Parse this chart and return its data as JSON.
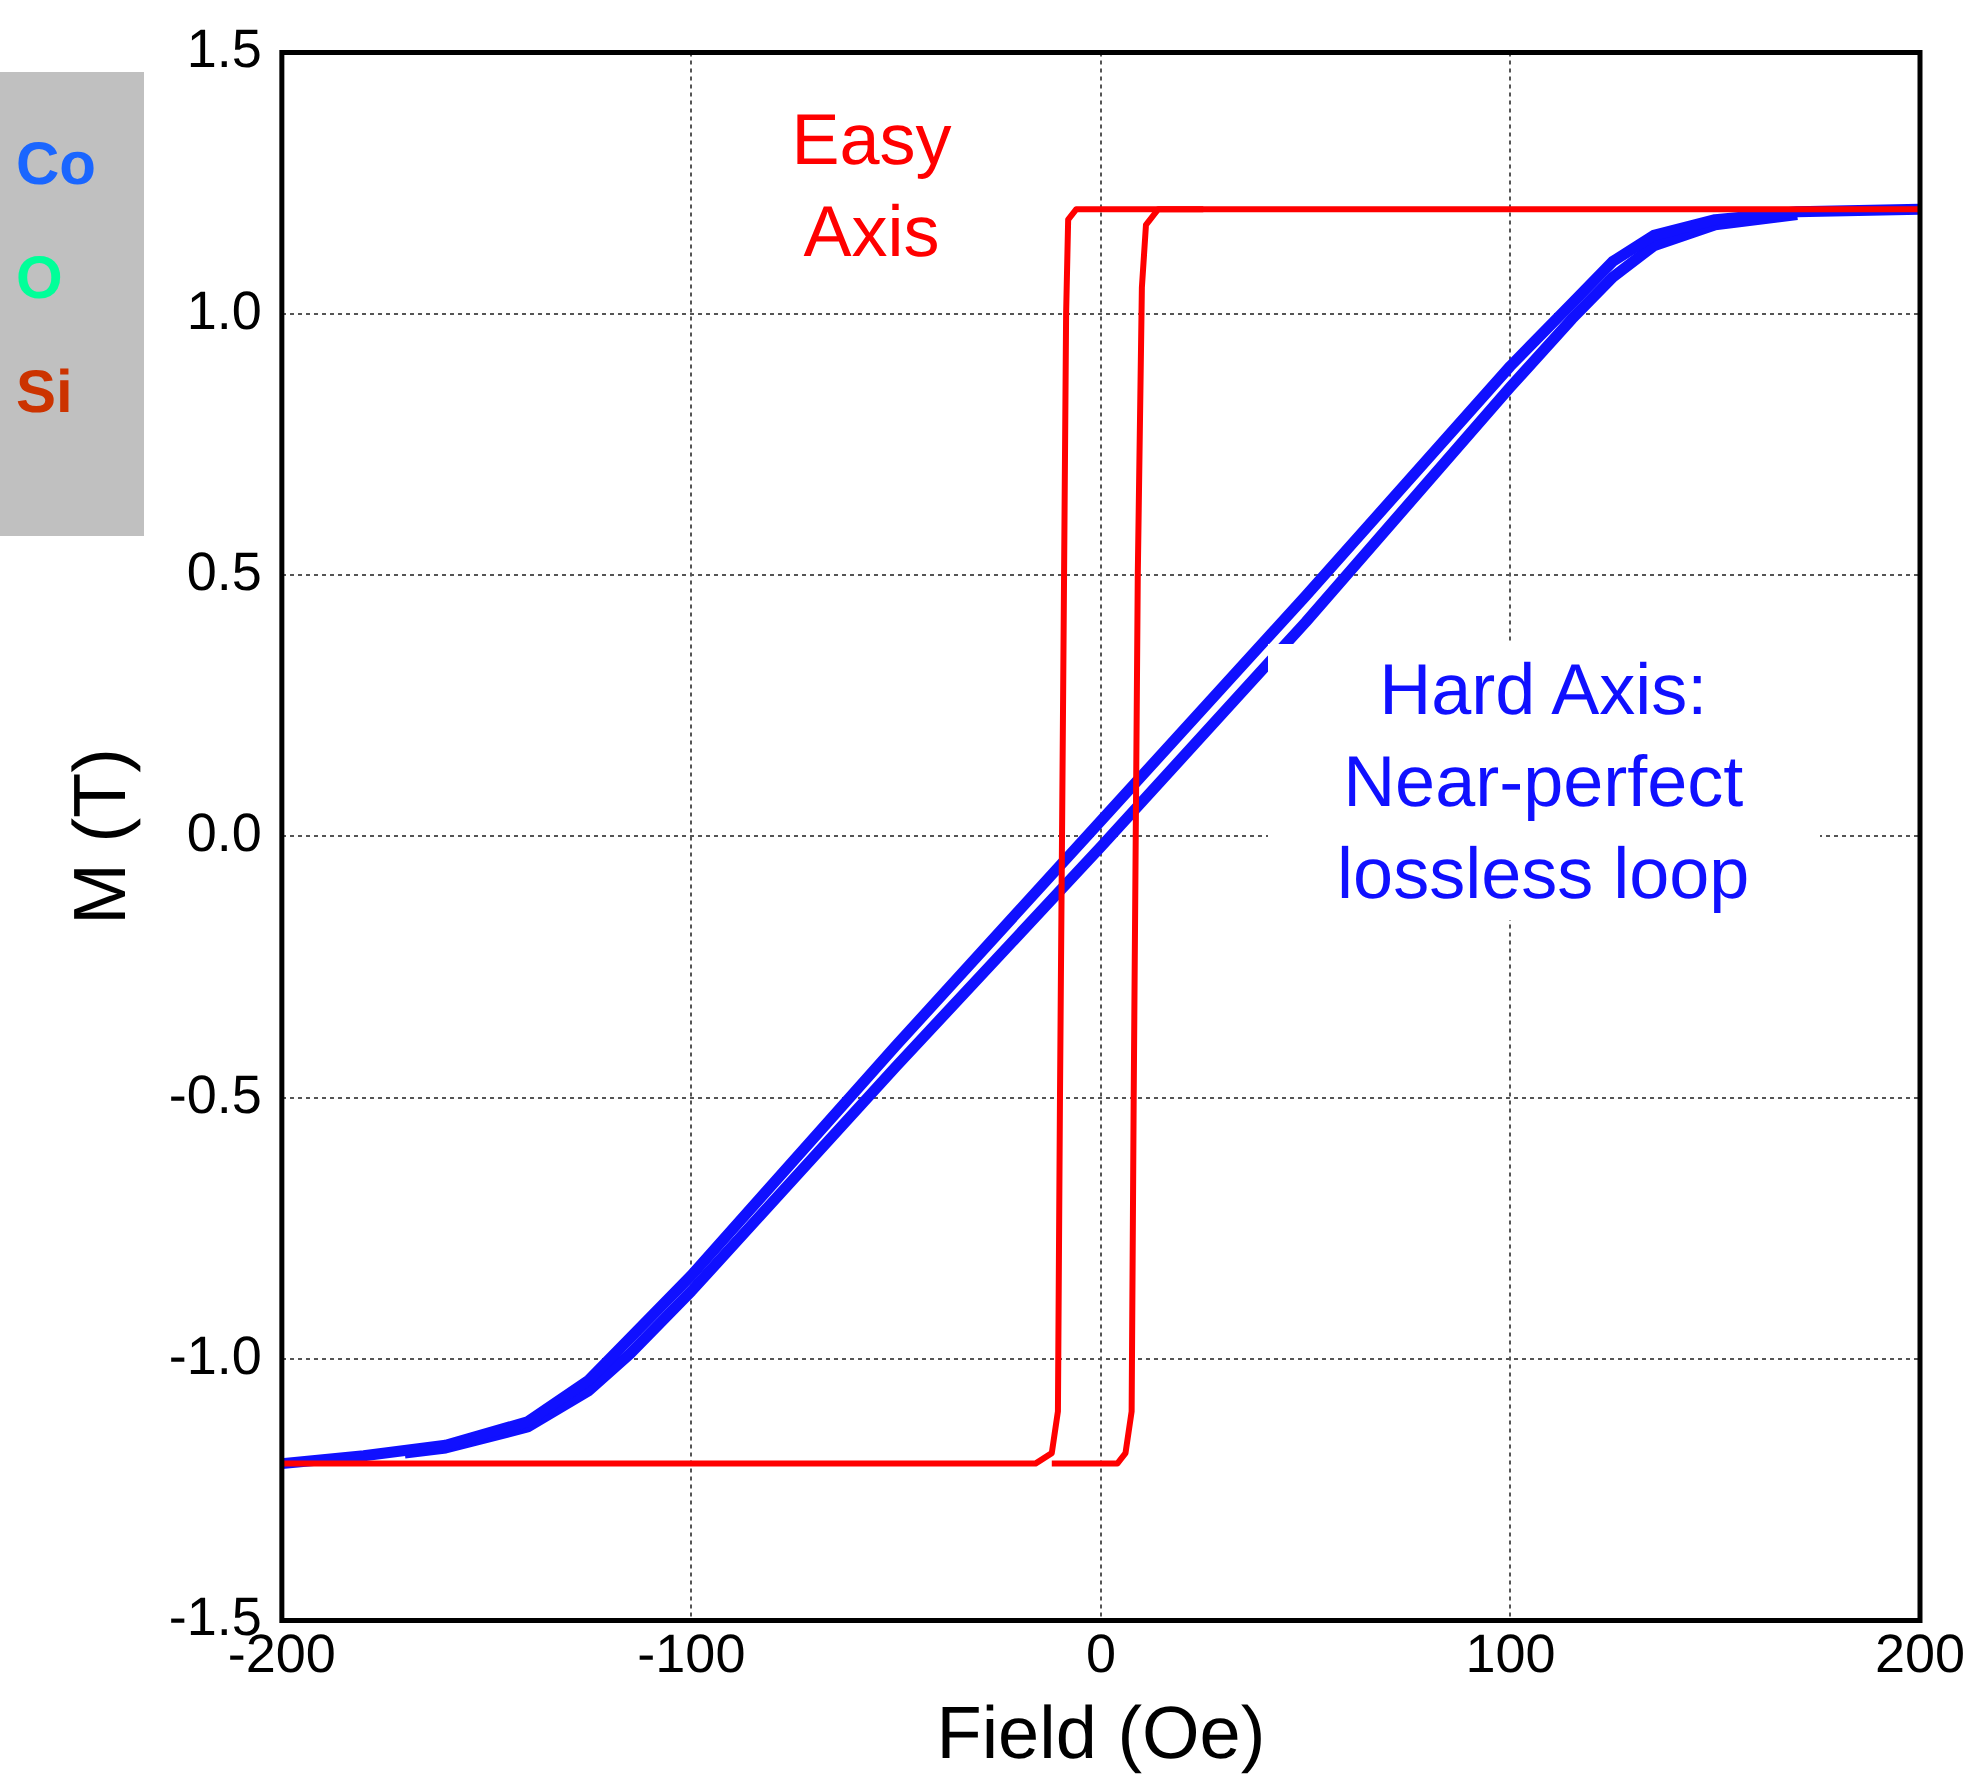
{
  "chart_data": {
    "type": "line",
    "xlabel": "Field (Oe)",
    "ylabel": "M (T)",
    "xlim": [
      -200,
      200
    ],
    "xticks": [
      -200,
      -100,
      0,
      100,
      200
    ],
    "ylim": [
      -1.5,
      1.5
    ],
    "yticks": [
      {
        "value": -1.5,
        "label": "-1.5"
      },
      {
        "value": -1,
        "label": "-1.0"
      },
      {
        "value": -0.5,
        "label": "-0.5"
      },
      {
        "value": 0,
        "label": "0.0"
      },
      {
        "value": 0.5,
        "label": "0.5"
      },
      {
        "value": 1,
        "label": "1.0"
      },
      {
        "value": 1.5,
        "label": "1.5"
      }
    ],
    "grid": true,
    "legend": false,
    "marker": "none",
    "line_style": "solid",
    "annotations": [
      "Co",
      "O",
      "Si"
    ],
    "series": [
      {
        "name": "Easy Axis",
        "color": "#ff0000",
        "x": [
          -200,
          -16,
          -12,
          -10.5,
          -10,
          -9,
          -8.5,
          -8,
          -6,
          200
        ],
        "values": [
          -1.2,
          -1.2,
          -1.18,
          -1.1,
          -0.5,
          0.5,
          1.0,
          1.18,
          1.2,
          1.2
        ]
      },
      {
        "color": "#ff0000",
        "x": [
          -12,
          4,
          6,
          7.5,
          8,
          9,
          10,
          11,
          14,
          25
        ],
        "values": [
          -1.2,
          -1.2,
          -1.18,
          -1.1,
          -0.5,
          0.5,
          1.05,
          1.17,
          1.2,
          1.2
        ]
      },
      {
        "name": "Hard Axis: Near-perfect lossless loop",
        "color": "#1010ff",
        "x": [
          -200,
          -180,
          -160,
          -140,
          -125,
          -115,
          -100,
          -50,
          0,
          50,
          100,
          115,
          125,
          135,
          150,
          170,
          200
        ],
        "values": [
          -1.2,
          -1.185,
          -1.165,
          -1.12,
          -1.04,
          -0.96,
          -0.84,
          -0.4,
          0.03,
          0.46,
          0.9,
          1.02,
          1.1,
          1.15,
          1.18,
          1.195,
          1.2
        ]
      },
      {
        "color": "#1010ff",
        "x": [
          -170,
          -160,
          -140,
          -125,
          -115,
          -100,
          -50,
          0,
          50,
          100,
          115,
          125,
          135,
          150,
          170
        ],
        "values": [
          -1.18,
          -1.17,
          -1.13,
          -1.06,
          -0.99,
          -0.87,
          -0.44,
          -0.02,
          0.41,
          0.86,
          0.99,
          1.07,
          1.13,
          1.17,
          1.19
        ]
      }
    ]
  }
}
